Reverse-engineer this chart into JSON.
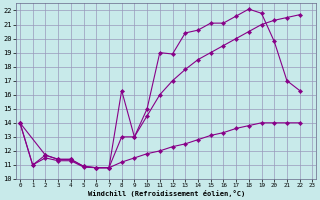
{
  "xlabel": "Windchill (Refroidissement éolien,°C)",
  "bg_color": "#c8eaea",
  "line_color": "#880088",
  "grid_color": "#9999bb",
  "xlim": [
    -0.3,
    23.3
  ],
  "ylim": [
    10.0,
    22.5
  ],
  "yticks": [
    10,
    11,
    12,
    13,
    14,
    15,
    16,
    17,
    18,
    19,
    20,
    21,
    22
  ],
  "xticks": [
    0,
    1,
    2,
    3,
    4,
    5,
    6,
    7,
    8,
    9,
    10,
    11,
    12,
    13,
    14,
    15,
    16,
    17,
    18,
    19,
    20,
    21,
    22,
    23
  ],
  "curve_top_x": [
    0,
    1,
    2,
    3,
    4,
    5,
    6,
    7,
    8,
    9,
    10,
    11,
    12,
    13,
    14,
    15,
    16,
    17,
    18,
    19,
    20,
    21,
    22
  ],
  "curve_top_y": [
    14.0,
    11.0,
    11.7,
    11.4,
    11.4,
    10.9,
    10.8,
    10.8,
    16.3,
    13.0,
    15.0,
    19.0,
    18.9,
    20.4,
    20.6,
    21.1,
    21.1,
    21.6,
    22.1,
    21.8,
    19.8,
    17.0,
    16.3
  ],
  "curve_mid_x": [
    0,
    2,
    3,
    4,
    5,
    6,
    7,
    8,
    9,
    10,
    11,
    12,
    13,
    14,
    15,
    16,
    17,
    18,
    19,
    20,
    21,
    22
  ],
  "curve_mid_y": [
    14.0,
    11.7,
    11.4,
    11.4,
    10.9,
    10.8,
    10.8,
    13.0,
    13.0,
    14.5,
    16.0,
    17.0,
    17.8,
    18.5,
    19.0,
    19.5,
    20.0,
    20.5,
    21.0,
    21.3,
    21.5,
    21.7
  ],
  "curve_bot_x": [
    0,
    1,
    2,
    3,
    4,
    5,
    6,
    7,
    8,
    9,
    10,
    11,
    12,
    13,
    14,
    15,
    16,
    17,
    18,
    19,
    20,
    21,
    22
  ],
  "curve_bot_y": [
    14.0,
    11.0,
    11.5,
    11.3,
    11.3,
    10.85,
    10.8,
    10.8,
    11.2,
    11.5,
    11.8,
    12.0,
    12.3,
    12.5,
    12.8,
    13.1,
    13.3,
    13.6,
    13.8,
    14.0,
    14.0,
    14.0,
    14.0
  ]
}
